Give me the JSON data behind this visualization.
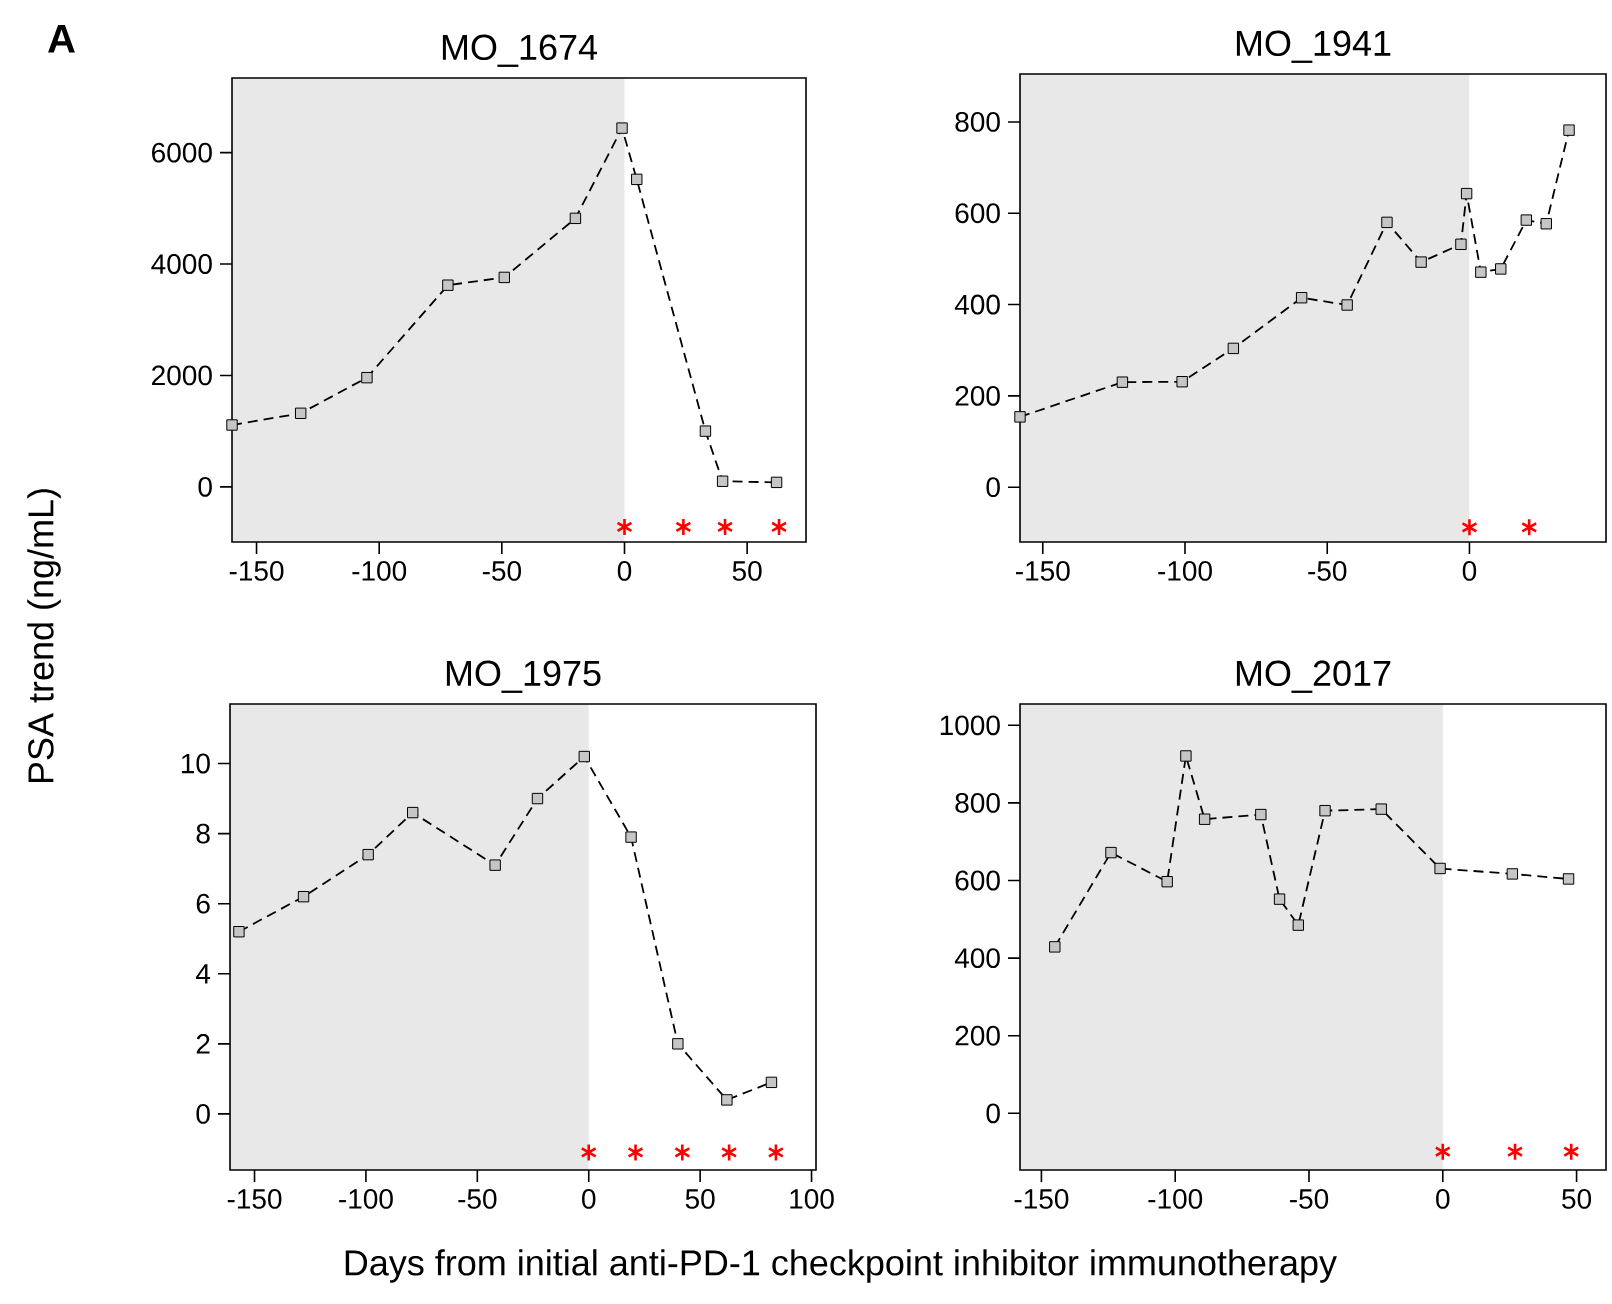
{
  "chart_data": [
    {
      "type": "line",
      "title": "MO_1674",
      "ylabel": "PSA trend (ng/mL)",
      "annotations": [
        "A"
      ],
      "xlim": [
        -160,
        74
      ],
      "ylim": [
        -990,
        7340
      ],
      "xticks": [
        -150,
        -100,
        -50,
        0,
        50
      ],
      "yticks": [
        0,
        2000,
        4000,
        6000
      ],
      "bands": [
        {
          "axis": "x",
          "from": -160,
          "to": 0,
          "color": "#e8e8e8"
        }
      ],
      "series": [
        {
          "color": "#000000",
          "marker": "square",
          "line_style": "dashed",
          "x": [
            -160,
            -132,
            -105,
            -72,
            -49,
            -20,
            -1,
            5,
            33,
            40,
            62
          ],
          "values": [
            1110,
            1320,
            1960,
            3620,
            3760,
            4820,
            6440,
            5520,
            1000,
            100,
            80
          ]
        },
        {
          "type": "scatter",
          "color": "#ff0000",
          "marker": "cross",
          "x": [
            0,
            24,
            41,
            63
          ],
          "values": [
            -720,
            -720,
            -720,
            -720
          ]
        }
      ]
    },
    {
      "type": "line",
      "title": "MO_1941",
      "xlim": [
        -158,
        48
      ],
      "ylim": [
        -120,
        905
      ],
      "xticks": [
        -150,
        -100,
        -50,
        0
      ],
      "yticks": [
        0,
        200,
        400,
        600,
        800
      ],
      "bands": [
        {
          "axis": "x",
          "from": -158,
          "to": 0,
          "color": "#e8e8e8"
        }
      ],
      "series": [
        {
          "color": "#000000",
          "marker": "square",
          "line_style": "dashed",
          "x": [
            -158,
            -122,
            -101,
            -83,
            -59,
            -43,
            -29,
            -17,
            -3,
            -1,
            4,
            11,
            20,
            27,
            35
          ],
          "values": [
            154,
            230,
            231,
            304,
            415,
            399,
            580,
            493,
            532,
            643,
            471,
            478,
            585,
            577,
            782
          ]
        },
        {
          "type": "scatter",
          "color": "#ff0000",
          "marker": "cross",
          "x": [
            0,
            21
          ],
          "values": [
            -88,
            -88
          ]
        }
      ]
    },
    {
      "type": "line",
      "title": "MO_1975",
      "xlabel": "Days from initial anti-PD-1 checkpoint inhibitor immunotherapy",
      "xlim": [
        -161,
        102
      ],
      "ylim": [
        -1.6,
        11.7
      ],
      "xticks": [
        -150,
        -100,
        -50,
        0,
        50,
        100
      ],
      "yticks": [
        0,
        2,
        4,
        6,
        8,
        10
      ],
      "bands": [
        {
          "axis": "x",
          "from": -161,
          "to": 0,
          "color": "#e8e8e8"
        }
      ],
      "series": [
        {
          "color": "#000000",
          "marker": "square",
          "line_style": "dashed",
          "x": [
            -157,
            -128,
            -99,
            -79,
            -42,
            -23,
            -2,
            19,
            40,
            62,
            82
          ],
          "values": [
            5.2,
            6.2,
            7.4,
            8.6,
            7.1,
            9.0,
            10.2,
            7.9,
            2.0,
            0.4,
            0.9
          ]
        },
        {
          "type": "scatter",
          "color": "#ff0000",
          "marker": "cross",
          "x": [
            0,
            21,
            42,
            63,
            84
          ],
          "values": [
            -1.1,
            -1.1,
            -1.1,
            -1.1,
            -1.1
          ]
        }
      ]
    },
    {
      "type": "line",
      "title": "MO_2017",
      "xlim": [
        -158,
        61
      ],
      "ylim": [
        -146,
        1055
      ],
      "xticks": [
        -150,
        -100,
        -50,
        0,
        50
      ],
      "yticks": [
        0,
        200,
        400,
        600,
        800,
        1000
      ],
      "bands": [
        {
          "axis": "x",
          "from": -158,
          "to": 0,
          "color": "#e8e8e8"
        }
      ],
      "series": [
        {
          "color": "#000000",
          "marker": "square",
          "line_style": "dashed",
          "x": [
            -145,
            -124,
            -103,
            -96,
            -89,
            -68,
            -61,
            -54,
            -44,
            -23,
            -1,
            26,
            47
          ],
          "values": [
            429,
            672,
            597,
            921,
            758,
            770,
            552,
            485,
            780,
            784,
            631,
            617,
            604
          ]
        },
        {
          "type": "scatter",
          "color": "#ff0000",
          "marker": "cross",
          "x": [
            0,
            27,
            48
          ],
          "values": [
            -99,
            -99,
            -99
          ]
        }
      ]
    }
  ]
}
